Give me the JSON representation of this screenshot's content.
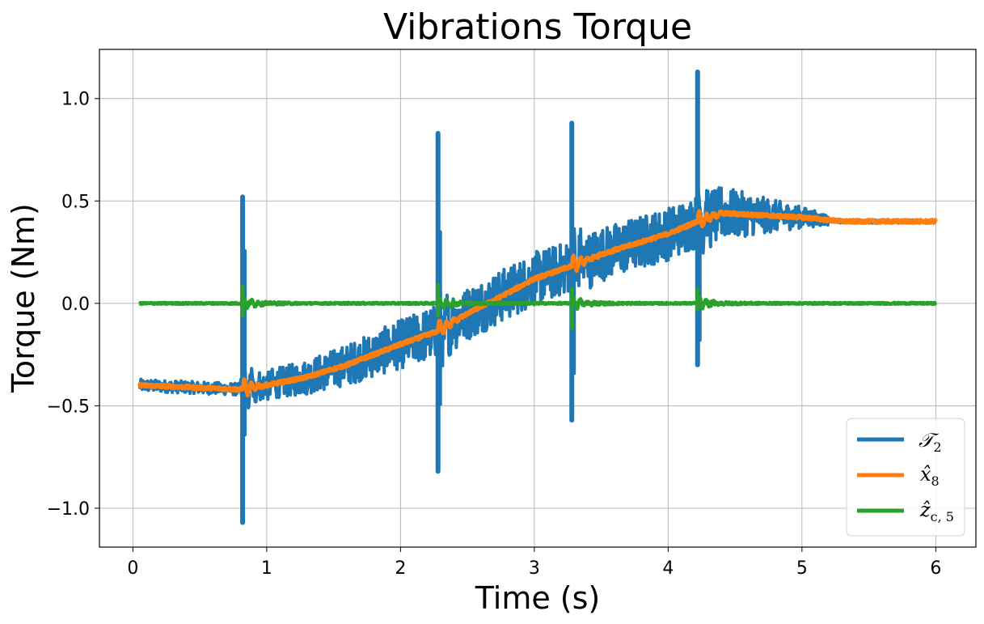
{
  "chart_data": {
    "type": "line",
    "title": "Vibrations Torque",
    "xlabel": "Time (s)",
    "ylabel": "Torque (Nm)",
    "xlim": [
      -0.25,
      6.3
    ],
    "ylim": [
      -1.19,
      1.24
    ],
    "xticks": [
      0,
      1,
      2,
      3,
      4,
      5,
      6
    ],
    "xtick_labels": [
      "0",
      "1",
      "2",
      "3",
      "4",
      "5",
      "6"
    ],
    "yticks": [
      -1.0,
      -0.5,
      0.0,
      0.5,
      1.0
    ],
    "ytick_labels": [
      "−1.0",
      "−0.5",
      "0.0",
      "0.5",
      "1.0"
    ],
    "grid": true,
    "legend_position": "lower-right",
    "series": [
      {
        "name": "T2",
        "legend_main": "𝒯",
        "legend_sub": "2",
        "color": "#1f77b4",
        "description_points": {
          "x": [
            0.05,
            0.8,
            1.0,
            1.3,
            1.6,
            2.0,
            2.26,
            2.5,
            2.8,
            3.0,
            3.27,
            3.5,
            3.8,
            4.0,
            4.22,
            4.4,
            4.7,
            5.0,
            5.3,
            6.0
          ],
          "y": [
            -0.4,
            -0.42,
            -0.4,
            -0.36,
            -0.3,
            -0.2,
            -0.14,
            -0.05,
            0.05,
            0.12,
            0.18,
            0.24,
            0.3,
            0.34,
            0.4,
            0.44,
            0.43,
            0.42,
            0.4,
            0.4
          ]
        },
        "spikes": [
          {
            "x": 0.82,
            "max": 0.52,
            "min": -1.07
          },
          {
            "x": 2.28,
            "max": 0.83,
            "min": -0.82
          },
          {
            "x": 3.28,
            "max": 0.88,
            "min": -0.57
          },
          {
            "x": 4.22,
            "max": 1.13,
            "min": -0.3
          }
        ]
      },
      {
        "name": "x8",
        "legend_main": "x̂",
        "legend_sub": "8",
        "color": "#ff7f0e",
        "points": {
          "x": [
            0.05,
            0.8,
            1.0,
            1.3,
            1.6,
            2.0,
            2.26,
            2.5,
            2.8,
            3.0,
            3.27,
            3.5,
            3.8,
            4.0,
            4.22,
            4.4,
            4.7,
            5.0,
            5.3,
            6.0
          ],
          "y": [
            -0.4,
            -0.42,
            -0.4,
            -0.36,
            -0.3,
            -0.2,
            -0.14,
            -0.05,
            0.05,
            0.12,
            0.18,
            0.24,
            0.3,
            0.34,
            0.4,
            0.44,
            0.43,
            0.42,
            0.4,
            0.4
          ]
        }
      },
      {
        "name": "zc5",
        "legend_main": "ẑ",
        "legend_sub": "c, 5",
        "color": "#2ca02c",
        "points": {
          "x": [
            0.05,
            0.82,
            2.28,
            3.28,
            4.22,
            6.0
          ],
          "y": [
            0.0,
            0.0,
            0.0,
            0.0,
            0.0,
            0.0
          ]
        },
        "spikes": [
          {
            "x": 0.82,
            "max": 0.08,
            "min": -0.06
          },
          {
            "x": 2.28,
            "max": 0.09,
            "min": -0.06
          },
          {
            "x": 3.28,
            "max": 0.07,
            "min": -0.12
          },
          {
            "x": 4.22,
            "max": 0.07,
            "min": -0.03
          }
        ]
      }
    ]
  }
}
